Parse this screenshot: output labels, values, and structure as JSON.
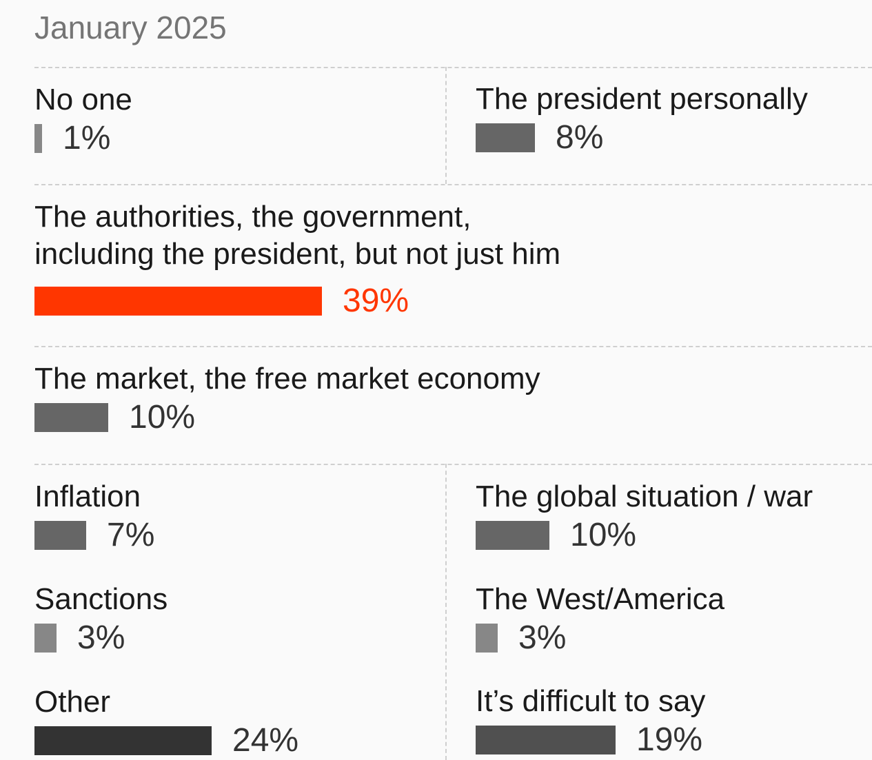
{
  "subtitle": "January 2025",
  "colors": {
    "highlight": "#ff3600",
    "bar_light": "#878787",
    "bar_mid": "#666666",
    "bar_dark": "#505050",
    "bar_darkest": "#333333",
    "grid": "#cfcfcf"
  },
  "chart_data": {
    "type": "bar",
    "title": "",
    "subtitle": "January 2025",
    "unit": "%",
    "categories": [
      "No one",
      "The president personally",
      "The authorities, the government, including the president, but not just him",
      "The market, the free market economy",
      "Inflation",
      "The global situation / war",
      "Sanctions",
      "The West/America",
      "Other",
      "It’s difficult to say"
    ],
    "values": [
      1,
      8,
      39,
      10,
      7,
      10,
      3,
      3,
      24,
      19
    ],
    "highlighted": "The authorities, the government, including the president, but not just him",
    "items": [
      {
        "label": "No one",
        "value": 1,
        "display": "1%",
        "color": "#878787"
      },
      {
        "label": "The president personally",
        "value": 8,
        "display": "8%",
        "color": "#666666"
      },
      {
        "label_lines": [
          "The authorities, the government,",
          "including the president, but not just him"
        ],
        "value": 39,
        "display": "39%",
        "color": "#ff3600",
        "highlight": true
      },
      {
        "label": "The market, the free market economy",
        "value": 10,
        "display": "10%",
        "color": "#666666"
      },
      {
        "label": "Inflation",
        "value": 7,
        "display": "7%",
        "color": "#666666"
      },
      {
        "label": "The global situation / war",
        "value": 10,
        "display": "10%",
        "color": "#666666"
      },
      {
        "label": "Sanctions",
        "value": 3,
        "display": "3%",
        "color": "#878787"
      },
      {
        "label": "The West/America",
        "value": 3,
        "display": "3%",
        "color": "#878787"
      },
      {
        "label": "Other",
        "value": 24,
        "display": "24%",
        "color": "#333333"
      },
      {
        "label": "It’s difficult to say",
        "value": 19,
        "display": "19%",
        "color": "#505050"
      }
    ]
  }
}
